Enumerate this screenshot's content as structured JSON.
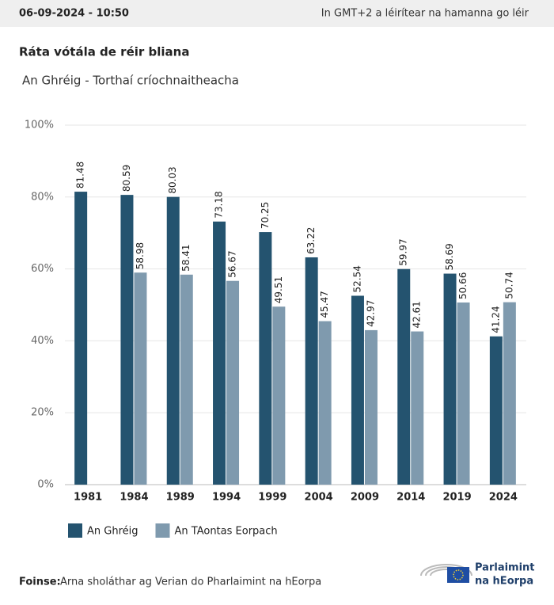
{
  "header": {
    "datetime": "06-09-2024 - 10:50",
    "timezone_note": "In GMT+2 a léirítear na hamanna go léir"
  },
  "chart_data": {
    "type": "bar",
    "title": "Ráta vótála de réir bliana",
    "subtitle": "An Ghréig - Torthaí críochnaitheacha",
    "categories": [
      "1981",
      "1984",
      "1989",
      "1994",
      "1999",
      "2004",
      "2009",
      "2014",
      "2019",
      "2024"
    ],
    "series": [
      {
        "name": "An Ghréig",
        "color": "#24536f",
        "values": [
          81.48,
          80.59,
          80.03,
          73.18,
          70.25,
          63.22,
          52.54,
          59.97,
          58.69,
          41.24
        ]
      },
      {
        "name": "An TAontas Eorpach",
        "color": "#7f9aae",
        "values": [
          null,
          58.98,
          58.41,
          56.67,
          49.51,
          45.47,
          42.97,
          42.61,
          50.66,
          50.74
        ]
      }
    ],
    "ylim": [
      0,
      100
    ],
    "yticks": [
      {
        "value": 0,
        "label": "0%"
      },
      {
        "value": 20,
        "label": "20%"
      },
      {
        "value": 40,
        "label": "40%"
      },
      {
        "value": 60,
        "label": "60%"
      },
      {
        "value": 80,
        "label": "80%"
      },
      {
        "value": 100,
        "label": "100%"
      }
    ],
    "grid": true
  },
  "footer": {
    "source_label": "Foinse:",
    "source_text": "Arna sholáthar ag Verian do Pharlaimint na hEorpa",
    "logo_line1": "Parlaimint",
    "logo_line2": "na hEorpa"
  }
}
